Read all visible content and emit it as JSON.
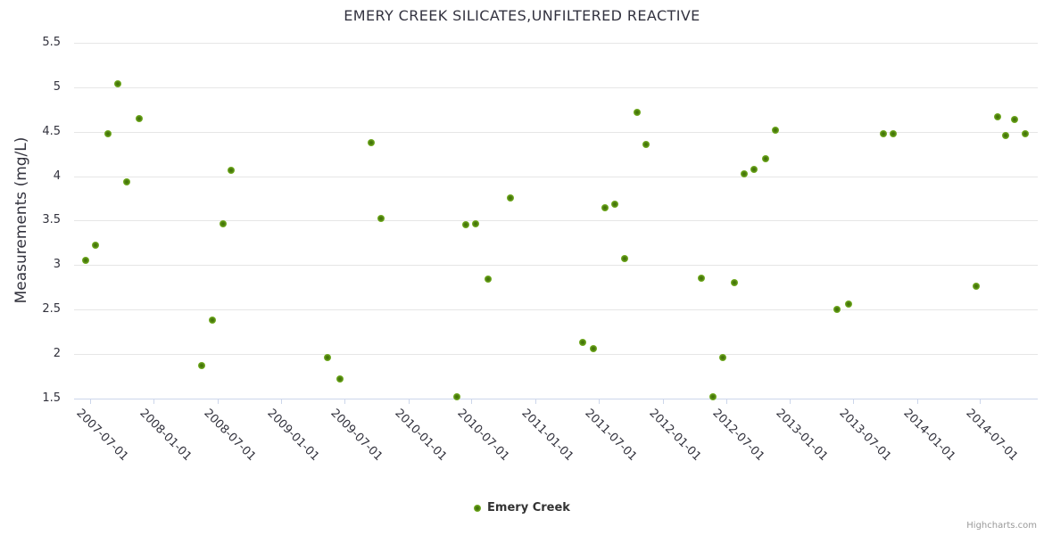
{
  "chart_data": {
    "type": "scatter",
    "title": "EMERY CREEK SILICATES,UNFILTERED REACTIVE",
    "xlabel": "",
    "ylabel": "Measurements (mg/L)",
    "ylim": [
      1.5,
      5.5
    ],
    "ytick_interval": 0.5,
    "yticks": [
      5.5,
      5,
      4.5,
      4,
      3.5,
      3,
      2.5,
      2,
      1.5
    ],
    "xticklabels": [
      "2007-07-01",
      "2008-01-01",
      "2008-07-01",
      "2009-01-01",
      "2009-07-01",
      "2010-01-01",
      "2010-07-01",
      "2011-01-01",
      "2011-07-01",
      "2012-01-01",
      "2012-07-01",
      "2013-01-01",
      "2013-07-01",
      "2014-01-01",
      "2014-07-01"
    ],
    "grid": "horizontal",
    "legend_position": "bottom-center",
    "series": [
      {
        "name": "Emery Creek",
        "color": "#7db928",
        "points": [
          {
            "date": "2007-06-19",
            "value": 3.05
          },
          {
            "date": "2007-07-16",
            "value": 3.22
          },
          {
            "date": "2007-08-21",
            "value": 4.48
          },
          {
            "date": "2007-09-18",
            "value": 5.04
          },
          {
            "date": "2007-10-16",
            "value": 3.93
          },
          {
            "date": "2007-11-21",
            "value": 4.65
          },
          {
            "date": "2008-05-16",
            "value": 1.87
          },
          {
            "date": "2008-06-17",
            "value": 2.38
          },
          {
            "date": "2008-07-18",
            "value": 3.46
          },
          {
            "date": "2008-08-09",
            "value": 4.07
          },
          {
            "date": "2009-05-13",
            "value": 1.96
          },
          {
            "date": "2009-06-18",
            "value": 1.72
          },
          {
            "date": "2009-09-16",
            "value": 4.38
          },
          {
            "date": "2009-10-15",
            "value": 3.52
          },
          {
            "date": "2010-05-19",
            "value": 1.52
          },
          {
            "date": "2010-06-15",
            "value": 3.45
          },
          {
            "date": "2010-07-13",
            "value": 3.46
          },
          {
            "date": "2010-08-17",
            "value": 2.84
          },
          {
            "date": "2010-10-20",
            "value": 3.75
          },
          {
            "date": "2011-05-17",
            "value": 2.13
          },
          {
            "date": "2011-06-16",
            "value": 2.06
          },
          {
            "date": "2011-07-20",
            "value": 3.64
          },
          {
            "date": "2011-08-17",
            "value": 3.68
          },
          {
            "date": "2011-09-14",
            "value": 3.07
          },
          {
            "date": "2011-10-20",
            "value": 4.72
          },
          {
            "date": "2011-11-15",
            "value": 4.36
          },
          {
            "date": "2012-04-22",
            "value": 2.85
          },
          {
            "date": "2012-05-25",
            "value": 1.52
          },
          {
            "date": "2012-06-23",
            "value": 1.96
          },
          {
            "date": "2012-07-25",
            "value": 2.8
          },
          {
            "date": "2012-08-22",
            "value": 4.03
          },
          {
            "date": "2012-09-19",
            "value": 4.08
          },
          {
            "date": "2012-10-23",
            "value": 4.2
          },
          {
            "date": "2012-11-20",
            "value": 4.52
          },
          {
            "date": "2013-05-17",
            "value": 2.5
          },
          {
            "date": "2013-06-19",
            "value": 2.56
          },
          {
            "date": "2013-09-26",
            "value": 4.48
          },
          {
            "date": "2013-10-24",
            "value": 4.48
          },
          {
            "date": "2014-06-19",
            "value": 2.76
          },
          {
            "date": "2014-08-20",
            "value": 4.67
          },
          {
            "date": "2014-09-12",
            "value": 4.46
          },
          {
            "date": "2014-10-07",
            "value": 4.64
          },
          {
            "date": "2014-11-07",
            "value": 4.48
          }
        ]
      }
    ]
  },
  "legend": {
    "items": [
      {
        "label": "Emery Creek"
      }
    ]
  },
  "credits": {
    "label": "Highcharts.com"
  },
  "colors": {
    "marker_edge": "#7db928",
    "marker_core": "#3e6d08",
    "gridline": "#e6e6e6",
    "axis_line": "#ccd6eb",
    "text": "#32323d",
    "credits_text": "#999999"
  }
}
